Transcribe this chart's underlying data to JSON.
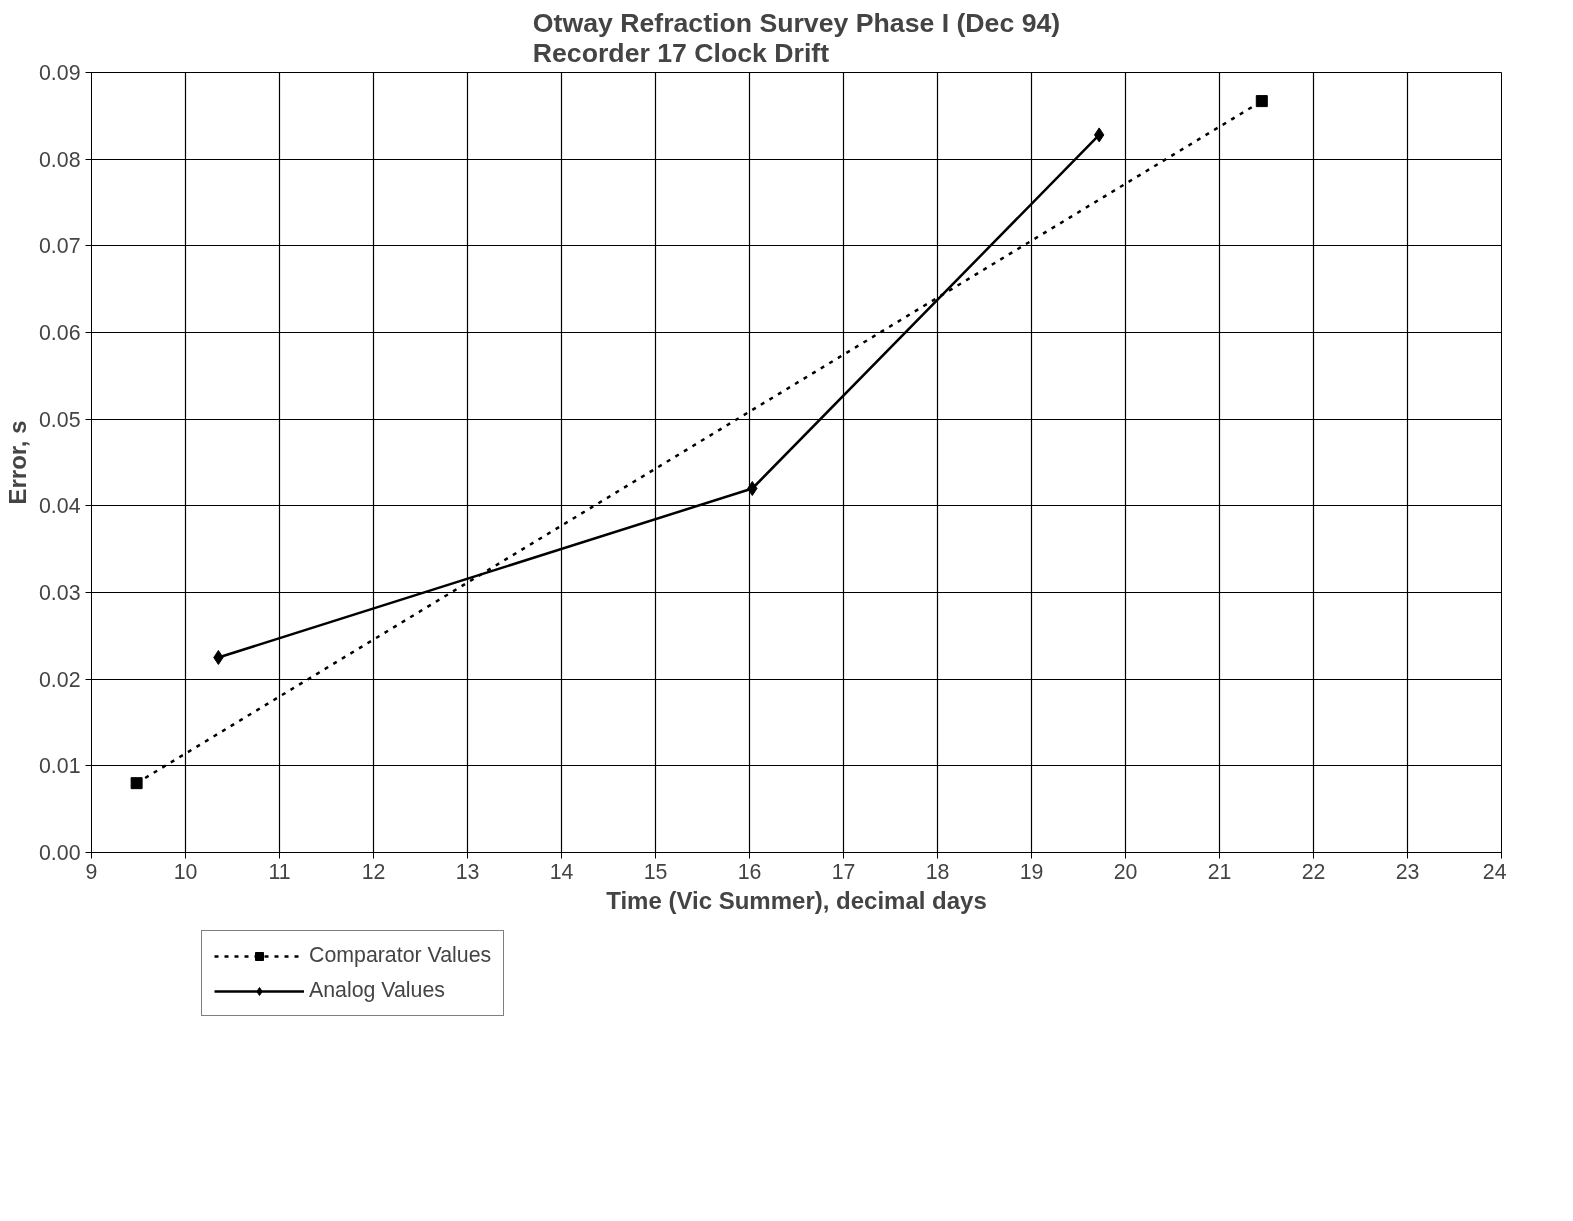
{
  "chart_data": {
    "type": "line",
    "title": "Otway Refraction Survey Phase I (Dec 94)\nRecorder 17 Clock Drift",
    "xlabel": "Time (Vic Summer), decimal days",
    "ylabel": "Error, s",
    "series": [
      {
        "name": "Comparator Values",
        "color": "#000000",
        "x": [
          9.48,
          21.45
        ],
        "values": [
          0.008,
          0.0867
        ],
        "marker": "square",
        "line_style": "dotted"
      },
      {
        "name": "Analog Values",
        "color": "#000000",
        "x": [
          10.35,
          16.03,
          19.72
        ],
        "values": [
          0.0225,
          0.042,
          0.0828
        ],
        "marker": "diamond",
        "line_style": "solid"
      }
    ],
    "xlim": [
      9,
      24
    ],
    "xticks": [
      9,
      10,
      11,
      12,
      13,
      14,
      15,
      16,
      17,
      18,
      19,
      20,
      21,
      22,
      23,
      24
    ],
    "ylim": [
      0,
      0.09
    ],
    "yticks": [
      {
        "value": 0,
        "label": "0.00"
      },
      0.01,
      0.02,
      0.03,
      0.04,
      0.05,
      0.06,
      0.07,
      0.08,
      0.09
    ],
    "grid": true,
    "legend": "bottom left"
  }
}
